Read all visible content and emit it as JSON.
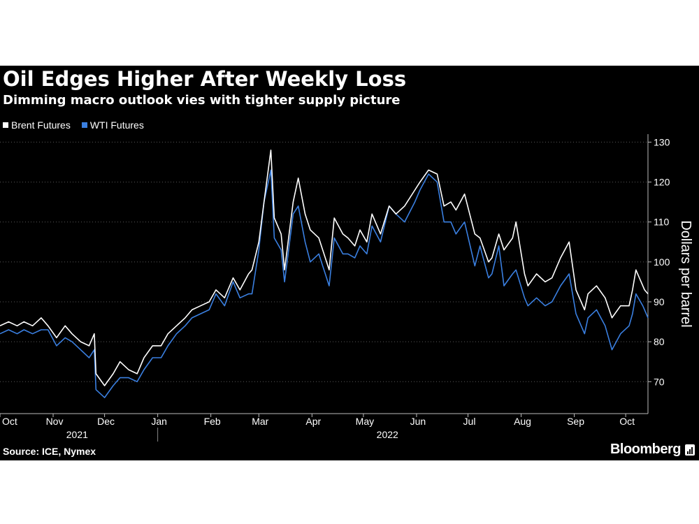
{
  "chart_data": {
    "type": "line",
    "title": "Oil Edges Higher After Weekly Loss",
    "subtitle": "Dimming macro outlook vies with tighter supply picture",
    "ylabel": "Dollars per barrel",
    "ylim": [
      62,
      132
    ],
    "y_ticks": [
      70,
      80,
      90,
      100,
      110,
      120,
      130
    ],
    "x_start": "2021-10-01",
    "x_end": "2022-10-14",
    "month_labels": [
      "Oct",
      "Nov",
      "Dec",
      "Jan",
      "Feb",
      "Mar",
      "Apr",
      "May",
      "Jun",
      "Jul",
      "Aug",
      "Sep",
      "Oct"
    ],
    "month_dates": [
      "2021-10-01",
      "2021-11-01",
      "2021-12-01",
      "2022-01-01",
      "2022-02-01",
      "2022-03-01",
      "2022-04-01",
      "2022-05-01",
      "2022-06-01",
      "2022-07-01",
      "2022-08-01",
      "2022-09-01",
      "2022-10-01"
    ],
    "year_labels": [
      {
        "label": "2021",
        "date": "2021-11-15"
      },
      {
        "label": "2022",
        "date": "2022-05-15"
      }
    ],
    "year_divider": "2022-01-01",
    "grid": true,
    "legend": "top-left",
    "series": [
      {
        "name": "Brent Futures",
        "color": "#ffffff",
        "points": [
          [
            "2021-10-01",
            84
          ],
          [
            "2021-10-06",
            85
          ],
          [
            "2021-10-11",
            84
          ],
          [
            "2021-10-15",
            85
          ],
          [
            "2021-10-20",
            84
          ],
          [
            "2021-10-25",
            86
          ],
          [
            "2021-10-29",
            84
          ],
          [
            "2021-11-03",
            81
          ],
          [
            "2021-11-08",
            84
          ],
          [
            "2021-11-12",
            82
          ],
          [
            "2021-11-17",
            80
          ],
          [
            "2021-11-22",
            79
          ],
          [
            "2021-11-25",
            82
          ],
          [
            "2021-11-26",
            72
          ],
          [
            "2021-12-01",
            69
          ],
          [
            "2021-12-06",
            72
          ],
          [
            "2021-12-10",
            75
          ],
          [
            "2021-12-15",
            73
          ],
          [
            "2021-12-20",
            72
          ],
          [
            "2021-12-24",
            76
          ],
          [
            "2021-12-29",
            79
          ],
          [
            "2022-01-03",
            79
          ],
          [
            "2022-01-07",
            82
          ],
          [
            "2022-01-12",
            84
          ],
          [
            "2022-01-17",
            86
          ],
          [
            "2022-01-21",
            88
          ],
          [
            "2022-01-26",
            89
          ],
          [
            "2022-01-31",
            90
          ],
          [
            "2022-02-04",
            93
          ],
          [
            "2022-02-09",
            91
          ],
          [
            "2022-02-14",
            96
          ],
          [
            "2022-02-18",
            93
          ],
          [
            "2022-02-23",
            97
          ],
          [
            "2022-02-25",
            98
          ],
          [
            "2022-03-01",
            105
          ],
          [
            "2022-03-04",
            115
          ],
          [
            "2022-03-08",
            128
          ],
          [
            "2022-03-10",
            111
          ],
          [
            "2022-03-14",
            107
          ],
          [
            "2022-03-16",
            98
          ],
          [
            "2022-03-21",
            115
          ],
          [
            "2022-03-24",
            121
          ],
          [
            "2022-03-28",
            112
          ],
          [
            "2022-03-31",
            108
          ],
          [
            "2022-04-05",
            106
          ],
          [
            "2022-04-08",
            102
          ],
          [
            "2022-04-11",
            98
          ],
          [
            "2022-04-14",
            111
          ],
          [
            "2022-04-19",
            107
          ],
          [
            "2022-04-22",
            106
          ],
          [
            "2022-04-26",
            104
          ],
          [
            "2022-04-29",
            108
          ],
          [
            "2022-05-03",
            105
          ],
          [
            "2022-05-06",
            112
          ],
          [
            "2022-05-11",
            107
          ],
          [
            "2022-05-16",
            114
          ],
          [
            "2022-05-20",
            112
          ],
          [
            "2022-05-25",
            114
          ],
          [
            "2022-05-31",
            118
          ],
          [
            "2022-06-03",
            120
          ],
          [
            "2022-06-08",
            123
          ],
          [
            "2022-06-13",
            122
          ],
          [
            "2022-06-17",
            114
          ],
          [
            "2022-06-21",
            115
          ],
          [
            "2022-06-24",
            113
          ],
          [
            "2022-06-29",
            117
          ],
          [
            "2022-07-05",
            107
          ],
          [
            "2022-07-08",
            106
          ],
          [
            "2022-07-13",
            100
          ],
          [
            "2022-07-15",
            101
          ],
          [
            "2022-07-19",
            107
          ],
          [
            "2022-07-22",
            103
          ],
          [
            "2022-07-27",
            106
          ],
          [
            "2022-07-29",
            110
          ],
          [
            "2022-08-03",
            97
          ],
          [
            "2022-08-05",
            94
          ],
          [
            "2022-08-10",
            97
          ],
          [
            "2022-08-15",
            95
          ],
          [
            "2022-08-19",
            96
          ],
          [
            "2022-08-24",
            101
          ],
          [
            "2022-08-29",
            105
          ],
          [
            "2022-09-02",
            93
          ],
          [
            "2022-09-07",
            88
          ],
          [
            "2022-09-09",
            92
          ],
          [
            "2022-09-14",
            94
          ],
          [
            "2022-09-19",
            91
          ],
          [
            "2022-09-23",
            86
          ],
          [
            "2022-09-28",
            89
          ],
          [
            "2022-10-03",
            89
          ],
          [
            "2022-10-05",
            93
          ],
          [
            "2022-10-07",
            98
          ],
          [
            "2022-10-11",
            94
          ],
          [
            "2022-10-12",
            93
          ],
          [
            "2022-10-14",
            92
          ]
        ]
      },
      {
        "name": "WTI Futures",
        "color": "#3a7fe0",
        "points": [
          [
            "2021-10-01",
            82
          ],
          [
            "2021-10-06",
            83
          ],
          [
            "2021-10-11",
            82
          ],
          [
            "2021-10-15",
            83
          ],
          [
            "2021-10-20",
            82
          ],
          [
            "2021-10-25",
            83
          ],
          [
            "2021-10-29",
            83
          ],
          [
            "2021-11-03",
            79
          ],
          [
            "2021-11-08",
            81
          ],
          [
            "2021-11-12",
            80
          ],
          [
            "2021-11-17",
            78
          ],
          [
            "2021-11-22",
            76
          ],
          [
            "2021-11-25",
            78
          ],
          [
            "2021-11-26",
            68
          ],
          [
            "2021-12-01",
            66
          ],
          [
            "2021-12-06",
            69
          ],
          [
            "2021-12-10",
            71
          ],
          [
            "2021-12-15",
            71
          ],
          [
            "2021-12-20",
            70
          ],
          [
            "2021-12-24",
            73
          ],
          [
            "2021-12-29",
            76
          ],
          [
            "2022-01-03",
            76
          ],
          [
            "2022-01-07",
            79
          ],
          [
            "2022-01-12",
            82
          ],
          [
            "2022-01-17",
            84
          ],
          [
            "2022-01-21",
            86
          ],
          [
            "2022-01-26",
            87
          ],
          [
            "2022-01-31",
            88
          ],
          [
            "2022-02-04",
            92
          ],
          [
            "2022-02-09",
            89
          ],
          [
            "2022-02-14",
            95
          ],
          [
            "2022-02-18",
            91
          ],
          [
            "2022-02-23",
            92
          ],
          [
            "2022-02-25",
            92
          ],
          [
            "2022-03-01",
            103
          ],
          [
            "2022-03-04",
            115
          ],
          [
            "2022-03-08",
            123
          ],
          [
            "2022-03-10",
            106
          ],
          [
            "2022-03-14",
            103
          ],
          [
            "2022-03-16",
            95
          ],
          [
            "2022-03-21",
            112
          ],
          [
            "2022-03-24",
            114
          ],
          [
            "2022-03-28",
            105
          ],
          [
            "2022-03-31",
            100
          ],
          [
            "2022-04-05",
            102
          ],
          [
            "2022-04-08",
            98
          ],
          [
            "2022-04-11",
            94
          ],
          [
            "2022-04-14",
            106
          ],
          [
            "2022-04-19",
            102
          ],
          [
            "2022-04-22",
            102
          ],
          [
            "2022-04-26",
            101
          ],
          [
            "2022-04-29",
            104
          ],
          [
            "2022-05-03",
            102
          ],
          [
            "2022-05-06",
            109
          ],
          [
            "2022-05-11",
            105
          ],
          [
            "2022-05-16",
            114
          ],
          [
            "2022-05-20",
            112
          ],
          [
            "2022-05-25",
            110
          ],
          [
            "2022-05-31",
            115
          ],
          [
            "2022-06-03",
            118
          ],
          [
            "2022-06-08",
            122
          ],
          [
            "2022-06-13",
            120
          ],
          [
            "2022-06-17",
            110
          ],
          [
            "2022-06-21",
            110
          ],
          [
            "2022-06-24",
            107
          ],
          [
            "2022-06-29",
            110
          ],
          [
            "2022-07-05",
            99
          ],
          [
            "2022-07-08",
            104
          ],
          [
            "2022-07-13",
            96
          ],
          [
            "2022-07-15",
            97
          ],
          [
            "2022-07-19",
            104
          ],
          [
            "2022-07-22",
            94
          ],
          [
            "2022-07-27",
            97
          ],
          [
            "2022-07-29",
            98
          ],
          [
            "2022-08-03",
            91
          ],
          [
            "2022-08-05",
            89
          ],
          [
            "2022-08-10",
            91
          ],
          [
            "2022-08-15",
            89
          ],
          [
            "2022-08-19",
            90
          ],
          [
            "2022-08-24",
            94
          ],
          [
            "2022-08-29",
            97
          ],
          [
            "2022-09-02",
            87
          ],
          [
            "2022-09-07",
            82
          ],
          [
            "2022-09-09",
            86
          ],
          [
            "2022-09-14",
            88
          ],
          [
            "2022-09-19",
            84
          ],
          [
            "2022-09-23",
            78
          ],
          [
            "2022-09-28",
            82
          ],
          [
            "2022-10-03",
            84
          ],
          [
            "2022-10-05",
            87
          ],
          [
            "2022-10-07",
            92
          ],
          [
            "2022-10-11",
            89
          ],
          [
            "2022-10-12",
            88
          ],
          [
            "2022-10-14",
            86
          ]
        ]
      }
    ]
  },
  "source": "Source: ICE, Nymex",
  "brand": "Bloomberg"
}
